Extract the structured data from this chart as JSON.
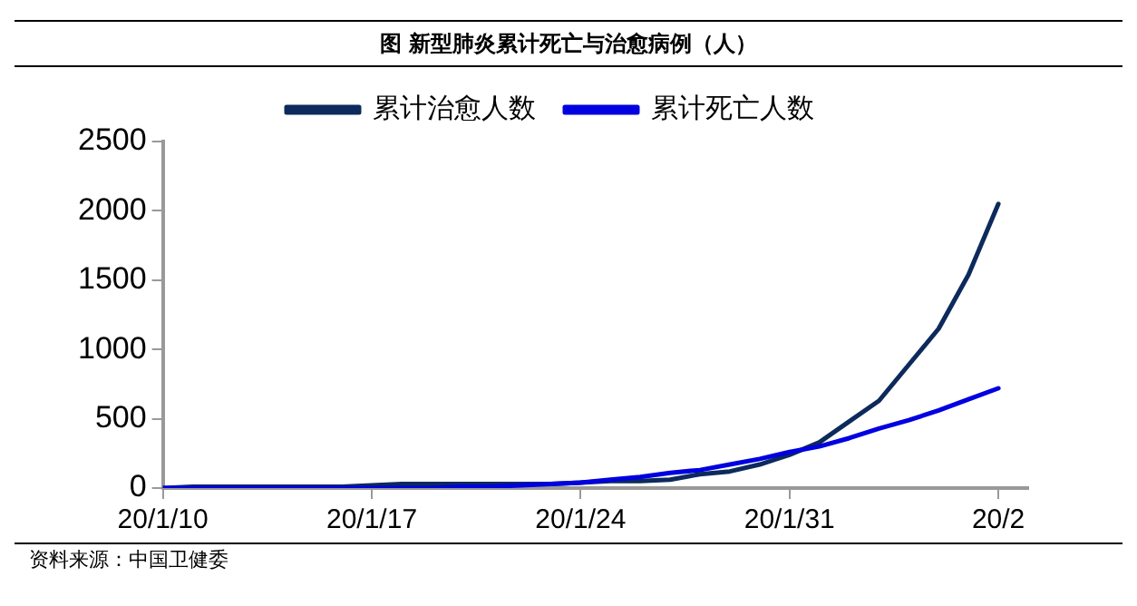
{
  "chart_data": {
    "type": "line",
    "title": "图 新型肺炎累计死亡与治愈病例（人）",
    "x": [
      "--01-10",
      "--01-11",
      "--01-12",
      "--01-13",
      "--01-14",
      "--01-15",
      "--01-16",
      "--01-17",
      "--01-18",
      "--01-19",
      "--01-20",
      "--01-21",
      "--01-22",
      "--01-23",
      "--01-24",
      "--01-25",
      "--01-26",
      "--01-27",
      "--01-28",
      "--01-29",
      "--01-30",
      "--01-31",
      "--02-01",
      "--02-02",
      "--02-03",
      "--02-04",
      "--02-05",
      "--02-06",
      "--02-07"
    ],
    "series": [
      {
        "name": "累计治愈人数",
        "color": "#0d2a5c",
        "values": [
          0,
          10,
          10,
          10,
          10,
          10,
          10,
          20,
          30,
          30,
          30,
          30,
          30,
          30,
          40,
          50,
          50,
          60,
          100,
          120,
          170,
          240,
          330,
          480,
          630,
          890,
          1150,
          1540,
          2050
        ]
      },
      {
        "name": "累计死亡人数",
        "color": "#0000e0",
        "values": [
          0,
          0,
          0,
          0,
          0,
          0,
          0,
          0,
          0,
          0,
          10,
          10,
          20,
          30,
          40,
          60,
          80,
          110,
          130,
          170,
          210,
          260,
          300,
          360,
          430,
          490,
          560,
          640,
          720
        ]
      }
    ],
    "xlim": [
      "--01-10",
      "--02-08"
    ],
    "xticks": [
      {
        "value": "--01-10",
        "label": "20/1/10"
      },
      {
        "value": "--01-17",
        "label": "20/1/17"
      },
      {
        "value": "--01-24",
        "label": "20/1/24"
      },
      {
        "value": "--01-31",
        "label": "20/1/31"
      },
      {
        "value": "--02-07",
        "label": "20/2"
      }
    ],
    "ylim": [
      0,
      2500
    ],
    "yticks": [
      0,
      500,
      1000,
      1500,
      2000,
      2500
    ],
    "legend": "top",
    "marker": "none",
    "line_style": "solid",
    "grid": false,
    "annotations": [
      "资料来源：中国卫健委"
    ]
  }
}
